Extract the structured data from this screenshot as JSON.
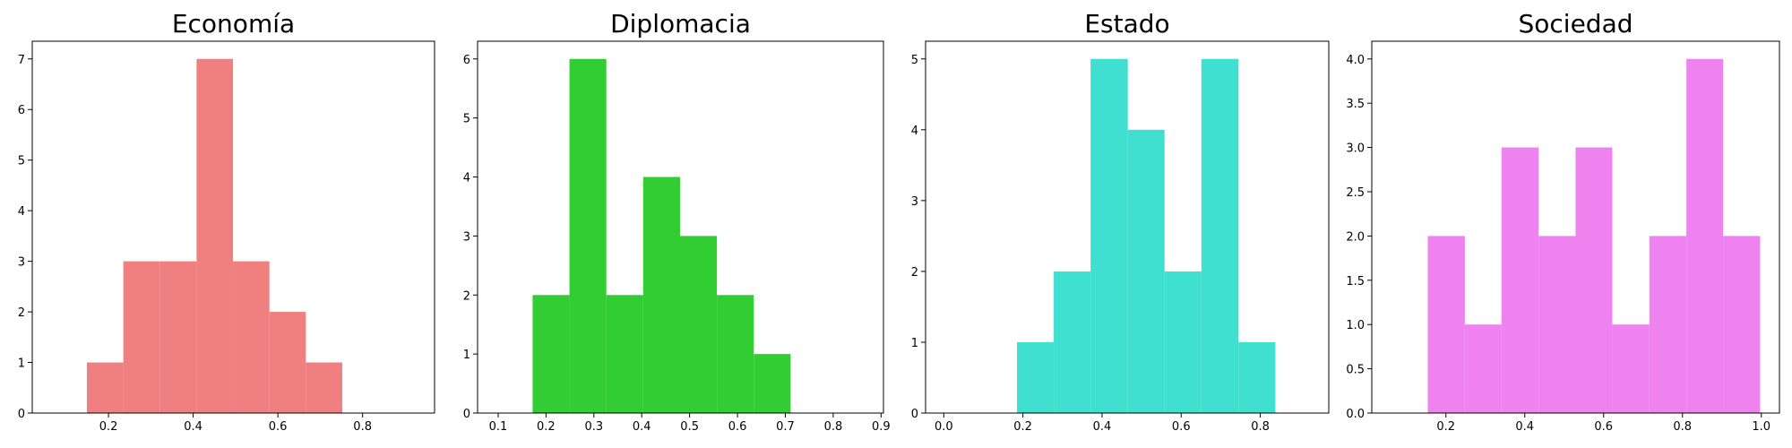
{
  "chart_data": [
    {
      "type": "histogram",
      "title": "Economía",
      "color": "#f08080",
      "bins": [
        0.149,
        0.235,
        0.321,
        0.408,
        0.494,
        0.58,
        0.666,
        0.752
      ],
      "values": [
        1,
        3,
        3,
        7,
        3,
        2,
        1
      ],
      "xlim": [
        0.02,
        0.97
      ],
      "ylim": [
        0,
        7.35
      ],
      "xticks": [
        0.2,
        0.4,
        0.6,
        0.8
      ],
      "yticks": [
        0,
        1,
        2,
        3,
        4,
        5,
        6,
        7
      ]
    },
    {
      "type": "histogram",
      "title": "Diplomacia",
      "color": "#32cd32",
      "bins": [
        0.172,
        0.249,
        0.326,
        0.403,
        0.48,
        0.557,
        0.634,
        0.711
      ],
      "values": [
        2,
        6,
        2,
        4,
        3,
        2,
        1
      ],
      "xlim": [
        0.057,
        0.905
      ],
      "ylim": [
        0,
        6.3
      ],
      "xticks": [
        0.1,
        0.2,
        0.3,
        0.4,
        0.5,
        0.6,
        0.7,
        0.8,
        0.9
      ],
      "yticks": [
        0,
        1,
        2,
        3,
        4,
        5,
        6
      ]
    },
    {
      "type": "histogram",
      "title": "Estado",
      "color": "#40e0d0",
      "bins": [
        0.185,
        0.278,
        0.371,
        0.465,
        0.558,
        0.651,
        0.745,
        0.838
      ],
      "values": [
        1,
        2,
        5,
        4,
        2,
        5,
        1
      ],
      "xlim": [
        -0.046,
        0.973
      ],
      "ylim": [
        0,
        5.25
      ],
      "xticks": [
        {
          "value": 0,
          "label": "0.0"
        },
        0.2,
        0.4,
        0.6,
        0.8
      ],
      "yticks": [
        0,
        1,
        2,
        3,
        4,
        5
      ]
    },
    {
      "type": "histogram",
      "title": "Sociedad",
      "color": "#ee82ee",
      "bins": [
        0.154,
        0.248,
        0.341,
        0.435,
        0.529,
        0.622,
        0.716,
        0.81,
        0.903,
        0.997
      ],
      "values": [
        2,
        1,
        3,
        2,
        3,
        1,
        2,
        4,
        2
      ],
      "xlim": [
        0.012,
        1.046
      ],
      "ylim": [
        0,
        4.2
      ],
      "xticks": [
        0.2,
        0.4,
        0.6,
        0.8,
        {
          "value": 1,
          "label": "1.0"
        }
      ],
      "yticks": [
        {
          "value": 0,
          "label": "0.0"
        },
        0.5,
        {
          "value": 1,
          "label": "1.0"
        },
        1.5,
        {
          "value": 2,
          "label": "2.0"
        },
        2.5,
        {
          "value": 3,
          "label": "3.0"
        },
        3.5,
        {
          "value": 4,
          "label": "4.0"
        }
      ]
    }
  ]
}
